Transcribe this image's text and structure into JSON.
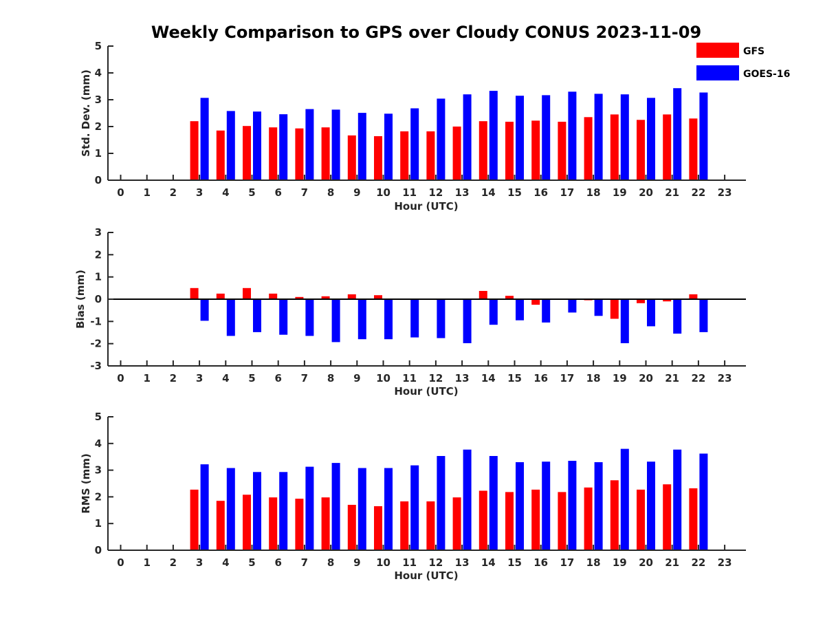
{
  "figure": {
    "title": "Weekly Comparison to GPS over Cloudy CONUS 2023-11-09"
  },
  "legend": [
    {
      "name": "GFS",
      "color": "#ff0000"
    },
    {
      "name": "GOES-16",
      "color": "#0000ff"
    }
  ],
  "chart_data": [
    {
      "type": "bar",
      "xlabel": "Hour (UTC)",
      "ylabel": "Std. Dev. (mm)",
      "ylim": [
        0,
        5
      ],
      "yticks": [
        "0",
        "1",
        "2",
        "3",
        "4",
        "5"
      ],
      "categories": [
        "0",
        "1",
        "2",
        "3",
        "4",
        "5",
        "6",
        "7",
        "8",
        "9",
        "10",
        "11",
        "12",
        "13",
        "14",
        "15",
        "16",
        "17",
        "18",
        "19",
        "20",
        "21",
        "22",
        "23"
      ],
      "grid": false,
      "series": [
        {
          "name": "GFS",
          "color": "#ff0000",
          "values": [
            null,
            null,
            null,
            2.2,
            1.85,
            2.02,
            1.97,
            1.93,
            1.97,
            1.67,
            1.64,
            1.82,
            1.82,
            2.0,
            2.2,
            2.18,
            2.22,
            2.18,
            2.35,
            2.45,
            2.25,
            2.45,
            2.3,
            null
          ]
        },
        {
          "name": "GOES-16",
          "color": "#0000ff",
          "values": [
            null,
            null,
            null,
            3.07,
            2.58,
            2.56,
            2.46,
            2.65,
            2.63,
            2.51,
            2.48,
            2.68,
            3.04,
            3.2,
            3.33,
            3.15,
            3.17,
            3.3,
            3.22,
            3.2,
            3.07,
            3.43,
            3.27,
            null
          ]
        }
      ]
    },
    {
      "type": "bar",
      "xlabel": "Hour (UTC)",
      "ylabel": "Bias (mm)",
      "ylim": [
        -3,
        3
      ],
      "yticks": [
        "-3",
        "-2",
        "-1",
        "0",
        "1",
        "2",
        "3"
      ],
      "zero_line": true,
      "categories": [
        "0",
        "1",
        "2",
        "3",
        "4",
        "5",
        "6",
        "7",
        "8",
        "9",
        "10",
        "11",
        "12",
        "13",
        "14",
        "15",
        "16",
        "17",
        "18",
        "19",
        "20",
        "21",
        "22",
        "23"
      ],
      "grid": false,
      "series": [
        {
          "name": "GFS",
          "color": "#ff0000",
          "values": [
            null,
            null,
            null,
            0.5,
            0.25,
            0.5,
            0.25,
            0.1,
            0.13,
            0.22,
            0.18,
            -0.03,
            -0.02,
            -0.03,
            0.37,
            0.15,
            -0.25,
            -0.02,
            -0.05,
            -0.88,
            -0.18,
            -0.1,
            0.22,
            null
          ]
        },
        {
          "name": "GOES-16",
          "color": "#0000ff",
          "values": [
            null,
            null,
            null,
            -0.97,
            -1.65,
            -1.48,
            -1.6,
            -1.65,
            -1.93,
            -1.8,
            -1.8,
            -1.72,
            -1.75,
            -1.98,
            -1.15,
            -0.95,
            -1.05,
            -0.6,
            -0.75,
            -1.98,
            -1.22,
            -1.55,
            -1.48,
            null
          ]
        }
      ]
    },
    {
      "type": "bar",
      "xlabel": "Hour (UTC)",
      "ylabel": "RMS (mm)",
      "ylim": [
        0,
        5
      ],
      "yticks": [
        "0",
        "1",
        "2",
        "3",
        "4",
        "5"
      ],
      "categories": [
        "0",
        "1",
        "2",
        "3",
        "4",
        "5",
        "6",
        "7",
        "8",
        "9",
        "10",
        "11",
        "12",
        "13",
        "14",
        "15",
        "16",
        "17",
        "18",
        "19",
        "20",
        "21",
        "22",
        "23"
      ],
      "grid": false,
      "series": [
        {
          "name": "GFS",
          "color": "#ff0000",
          "values": [
            null,
            null,
            null,
            2.27,
            1.85,
            2.08,
            1.98,
            1.93,
            1.98,
            1.7,
            1.65,
            1.83,
            1.83,
            1.98,
            2.23,
            2.18,
            2.27,
            2.18,
            2.35,
            2.62,
            2.27,
            2.47,
            2.32,
            null
          ]
        },
        {
          "name": "GOES-16",
          "color": "#0000ff",
          "values": [
            null,
            null,
            null,
            3.22,
            3.08,
            2.93,
            2.93,
            3.13,
            3.27,
            3.08,
            3.08,
            3.18,
            3.53,
            3.77,
            3.53,
            3.3,
            3.32,
            3.35,
            3.3,
            3.8,
            3.32,
            3.77,
            3.62,
            null
          ]
        }
      ]
    }
  ]
}
